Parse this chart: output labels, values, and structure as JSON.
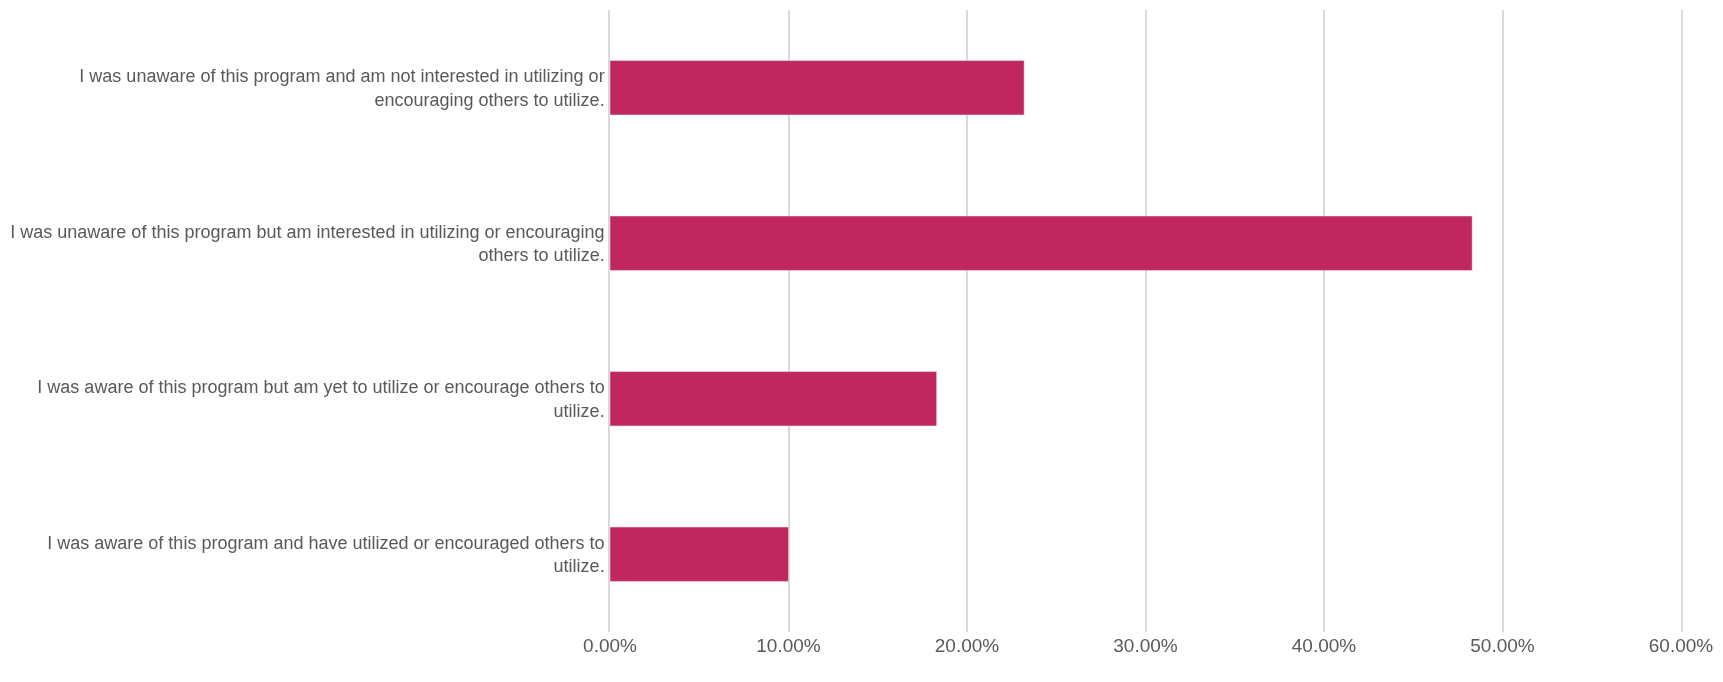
{
  "chart_data": {
    "type": "bar",
    "orientation": "horizontal",
    "categories": [
      "I was unaware of this program and am not interested in utilizing or encouraging others to utilize.",
      "I was unaware of this program but am interested in utilizing or encouraging others to utilize.",
      "I was aware of this program but am yet to utilize or encourage others to utilize.",
      "I was aware of this program and have utilized or encouraged others to utilize."
    ],
    "values": [
      23.2,
      48.3,
      18.3,
      10.0
    ],
    "color": "#c0275e",
    "xlim": [
      0,
      60
    ],
    "xticks": [
      {
        "value": 0,
        "label": "0.00%"
      },
      {
        "value": 10,
        "label": "10.00%"
      },
      {
        "value": 20,
        "label": "20.00%"
      },
      {
        "value": 30,
        "label": "30.00%"
      },
      {
        "value": 40,
        "label": "40.00%"
      },
      {
        "value": 50,
        "label": "50.00%"
      },
      {
        "value": 60,
        "label": "60.00%"
      }
    ],
    "grid": "x"
  }
}
